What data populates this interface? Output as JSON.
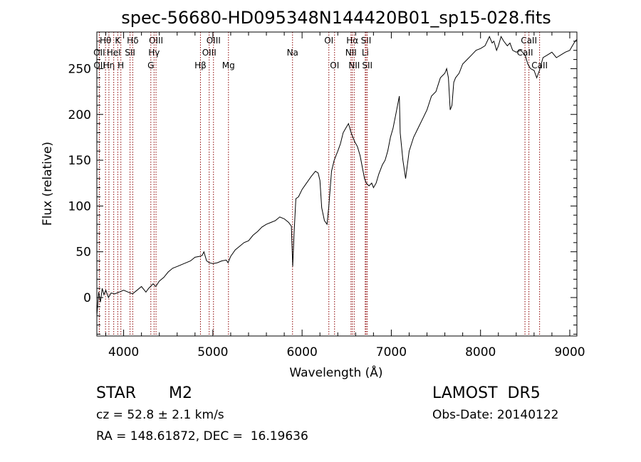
{
  "chart_data": {
    "type": "line",
    "title": "spec-56680-HD095348N144420B01_sp15-028.fits",
    "xlabel": "Wavelength (Å)",
    "ylabel": "Flux (relative)",
    "xlim": [
      3700,
      9080
    ],
    "ylim": [
      -42,
      290
    ],
    "xticks": [
      4000,
      5000,
      6000,
      7000,
      8000,
      9000
    ],
    "yticks": [
      0,
      50,
      100,
      150,
      200,
      250
    ],
    "grid": false,
    "line_color": "#000000",
    "marker_color": "#8b0000",
    "spectral_lines": [
      {
        "label": "Hθ",
        "wave": 3797,
        "row": 0
      },
      {
        "label": "OII",
        "wave": 3727,
        "row": 1
      },
      {
        "label": "OII",
        "wave": 3729,
        "row": 2
      },
      {
        "label": "Hη",
        "wave": 3835,
        "row": 2
      },
      {
        "label": "K",
        "wave": 3934,
        "row": 0
      },
      {
        "label": "HeI",
        "wave": 3889,
        "row": 1
      },
      {
        "label": "H",
        "wave": 3969,
        "row": 2
      },
      {
        "label": "Hδ",
        "wave": 4102,
        "row": 0
      },
      {
        "label": "SII",
        "wave": 4072,
        "row": 1
      },
      {
        "label": "OIII",
        "wave": 4363,
        "row": 0
      },
      {
        "label": "Hγ",
        "wave": 4341,
        "row": 1
      },
      {
        "label": "G",
        "wave": 4305,
        "row": 2
      },
      {
        "label": "Hβ",
        "wave": 4861,
        "row": 2
      },
      {
        "label": "OIII",
        "wave": 5007,
        "row": 0
      },
      {
        "label": "OIII",
        "wave": 4959,
        "row": 1
      },
      {
        "label": "Mg",
        "wave": 5175,
        "row": 2
      },
      {
        "label": "Na",
        "wave": 5893,
        "row": 1
      },
      {
        "label": "OI",
        "wave": 6300,
        "row": 0
      },
      {
        "label": "OI",
        "wave": 6364,
        "row": 2
      },
      {
        "label": "Hα",
        "wave": 6563,
        "row": 0
      },
      {
        "label": "NII",
        "wave": 6548,
        "row": 1
      },
      {
        "label": "NII",
        "wave": 6584,
        "row": 2
      },
      {
        "label": "SII",
        "wave": 6717,
        "row": 0
      },
      {
        "label": "Li",
        "wave": 6708,
        "row": 1
      },
      {
        "label": "SII",
        "wave": 6731,
        "row": 2
      },
      {
        "label": "CaII",
        "wave": 8542,
        "row": 0
      },
      {
        "label": "CaII",
        "wave": 8498,
        "row": 1
      },
      {
        "label": "CaII",
        "wave": 8662,
        "row": 2
      }
    ],
    "series": [
      {
        "x": [
          3700,
          3720,
          3740,
          3760,
          3780,
          3800,
          3830,
          3860,
          3900,
          3950,
          4000,
          4050,
          4100,
          4150,
          4200,
          4250,
          4280,
          4300,
          4330,
          4360,
          4400,
          4450,
          4500,
          4550,
          4600,
          4650,
          4700,
          4750,
          4800,
          4850,
          4880,
          4900,
          4930,
          4960,
          5000,
          5050,
          5100,
          5150,
          5170,
          5200,
          5250,
          5300,
          5350,
          5400,
          5450,
          5500,
          5550,
          5600,
          5650,
          5700,
          5750,
          5800,
          5850,
          5880,
          5895,
          5910,
          5930,
          5960,
          6000,
          6050,
          6100,
          6150,
          6180,
          6200,
          6220,
          6250,
          6280,
          6300,
          6330,
          6360,
          6400,
          6430,
          6460,
          6490,
          6520,
          6550,
          6570,
          6590,
          6620,
          6650,
          6680,
          6700,
          6720,
          6750,
          6780,
          6800,
          6830,
          6860,
          6900,
          6930,
          6960,
          6990,
          7020,
          7050,
          7070,
          7090,
          7100,
          7130,
          7160,
          7200,
          7250,
          7300,
          7350,
          7400,
          7450,
          7500,
          7550,
          7600,
          7620,
          7640,
          7660,
          7680,
          7700,
          7720,
          7760,
          7800,
          7850,
          7900,
          7950,
          8000,
          8050,
          8100,
          8130,
          8150,
          8180,
          8200,
          8230,
          8260,
          8300,
          8330,
          8360,
          8400,
          8450,
          8500,
          8530,
          8560,
          8600,
          8630,
          8660,
          8700,
          8750,
          8800,
          8850,
          8900,
          8950,
          9000,
          9030,
          9060,
          9080
        ],
        "y": [
          -20,
          6,
          -5,
          10,
          3,
          8,
          0,
          5,
          4,
          6,
          8,
          6,
          4,
          8,
          12,
          6,
          10,
          12,
          15,
          12,
          18,
          22,
          28,
          32,
          34,
          36,
          38,
          40,
          44,
          45,
          46,
          50,
          40,
          38,
          37,
          38,
          40,
          41,
          38,
          45,
          52,
          56,
          60,
          62,
          68,
          72,
          77,
          80,
          82,
          84,
          88,
          86,
          82,
          78,
          34,
          70,
          108,
          110,
          118,
          125,
          132,
          138,
          136,
          128,
          98,
          84,
          80,
          100,
          138,
          150,
          160,
          168,
          180,
          185,
          190,
          180,
          175,
          170,
          165,
          155,
          140,
          130,
          125,
          122,
          125,
          120,
          125,
          135,
          145,
          150,
          160,
          175,
          185,
          200,
          210,
          220,
          180,
          150,
          130,
          160,
          175,
          185,
          195,
          205,
          220,
          225,
          240,
          245,
          250,
          240,
          205,
          210,
          235,
          240,
          245,
          255,
          260,
          265,
          270,
          272,
          275,
          285,
          278,
          280,
          270,
          275,
          285,
          280,
          275,
          278,
          270,
          268,
          270,
          265,
          255,
          250,
          248,
          240,
          248,
          262,
          265,
          268,
          262,
          265,
          268,
          270,
          275,
          280,
          282
        ]
      }
    ]
  },
  "info": {
    "obj_class": "STAR",
    "subclass": "M2",
    "survey": "LAMOST  DR5",
    "redshift": "cz = 52.8 ± 2.1 km/s",
    "obs_date": "Obs-Date: 20140122",
    "coords": "RA = 148.61872, DEC =  16.19636"
  }
}
